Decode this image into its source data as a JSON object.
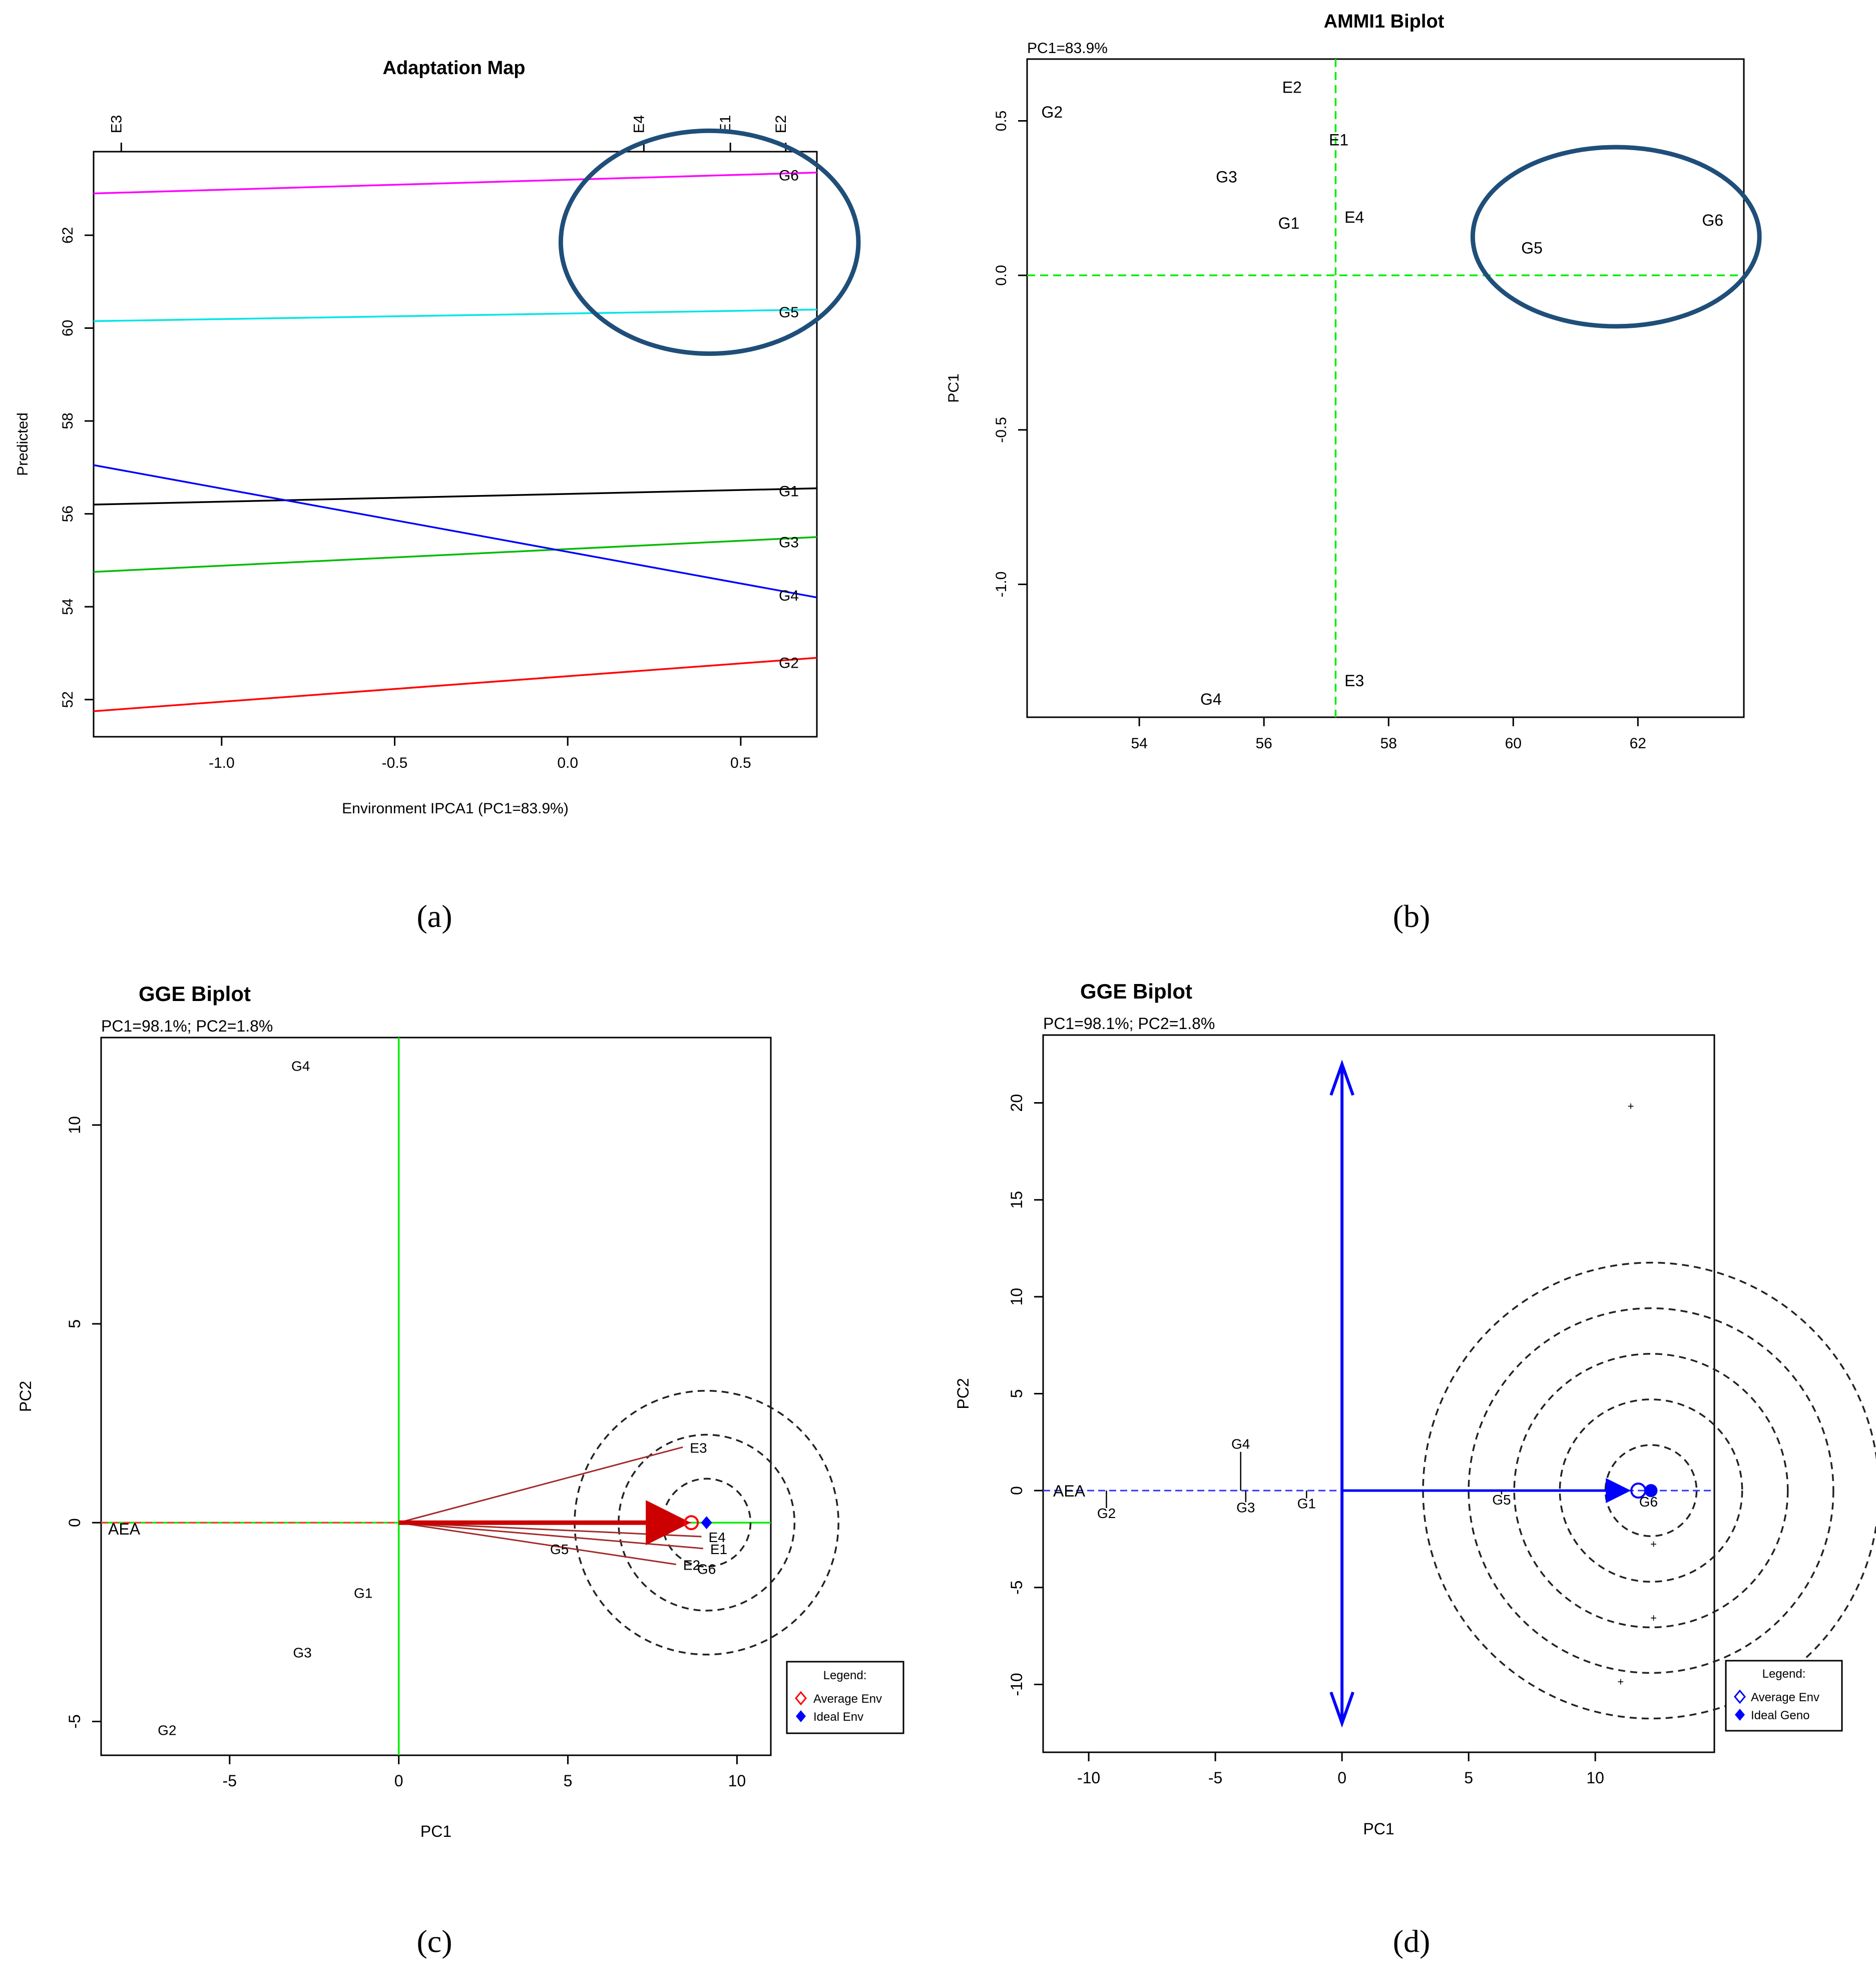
{
  "captions": {
    "a": "(a)",
    "b": "(b)",
    "c": "(c)",
    "d": "(d)"
  },
  "colors": {
    "genotype": "#0000ff",
    "environment": "#ff0000",
    "circle": "#1f4e79",
    "green": "#00ee00",
    "dash": "#000000"
  },
  "chart_data": [
    {
      "id": "a",
      "type": "line",
      "title": "Adaptation Map",
      "xlabel": "Environment IPCA1 (PC1=83.9%)",
      "ylabel": "Predicted",
      "xlim": [
        -1.37,
        0.72
      ],
      "ylim": [
        51.2,
        63.8
      ],
      "x_ticks": [
        -1.0,
        -0.5,
        0.0,
        0.5
      ],
      "x_tick_labels": [
        "-1.0",
        "-0.5",
        "0.0",
        "0.5"
      ],
      "y_ticks": [
        52,
        54,
        56,
        58,
        60,
        62
      ],
      "y_tick_labels": [
        "52",
        "54",
        "56",
        "58",
        "60",
        "62"
      ],
      "top_axis": [
        {
          "label": "E3",
          "x": -1.29
        },
        {
          "label": "E4",
          "x": 0.22
        },
        {
          "label": "E1",
          "x": 0.47
        },
        {
          "label": "E2",
          "x": 0.63
        }
      ],
      "series": [
        {
          "name": "G6",
          "color": "#ff00ff",
          "x": [
            -1.37,
            0.72
          ],
          "y": [
            62.9,
            63.35
          ],
          "label_at": [
            0.61,
            63.3
          ]
        },
        {
          "name": "G5",
          "color": "#00e5e5",
          "x": [
            -1.37,
            0.72
          ],
          "y": [
            60.15,
            60.4
          ],
          "label_at": [
            0.61,
            60.35
          ]
        },
        {
          "name": "G1",
          "color": "#000000",
          "x": [
            -1.37,
            0.72
          ],
          "y": [
            56.2,
            56.55
          ],
          "label_at": [
            0.61,
            56.5
          ]
        },
        {
          "name": "G3",
          "color": "#00bb00",
          "x": [
            -1.37,
            0.72
          ],
          "y": [
            54.75,
            55.5
          ],
          "label_at": [
            0.61,
            55.4
          ]
        },
        {
          "name": "G4",
          "color": "#0000ff",
          "x": [
            -1.37,
            0.72
          ],
          "y": [
            57.05,
            54.2
          ],
          "label_at": [
            0.61,
            54.25
          ]
        },
        {
          "name": "G2",
          "color": "#ff0000",
          "x": [
            -1.37,
            0.72
          ],
          "y": [
            51.75,
            52.9
          ],
          "label_at": [
            0.61,
            52.8
          ]
        }
      ],
      "annotations": [
        {
          "shape": "ellipse",
          "center": [
            0.41,
            61.85
          ],
          "radii": [
            0.43,
            2.4
          ]
        }
      ]
    },
    {
      "id": "b",
      "type": "scatter",
      "title": "AMMI1 Biplot",
      "subtitle": "PC1=83.9%",
      "xlabel": "",
      "ylabel": "PC1",
      "xlim": [
        52.2,
        63.7
      ],
      "ylim": [
        -1.43,
        0.7
      ],
      "x_ticks": [
        54,
        56,
        58,
        60,
        62
      ],
      "x_tick_labels": [
        "54",
        "56",
        "58",
        "60",
        "62"
      ],
      "y_ticks": [
        -1.0,
        -0.5,
        0.0,
        0.5
      ],
      "y_tick_labels": [
        "-1.0",
        "-0.5",
        "0.0",
        "0.5"
      ],
      "ref_lines": {
        "x": 57.15,
        "y": 0.0
      },
      "points": [
        {
          "label": "G2",
          "x": 52.6,
          "y": 0.53,
          "group": "genotype"
        },
        {
          "label": "G3",
          "x": 55.4,
          "y": 0.32,
          "group": "genotype"
        },
        {
          "label": "G1",
          "x": 56.4,
          "y": 0.17,
          "group": "genotype"
        },
        {
          "label": "G5",
          "x": 60.3,
          "y": 0.09,
          "group": "genotype"
        },
        {
          "label": "G6",
          "x": 63.2,
          "y": 0.18,
          "group": "genotype"
        },
        {
          "label": "G4",
          "x": 55.15,
          "y": -1.37,
          "group": "genotype"
        },
        {
          "label": "E2",
          "x": 56.45,
          "y": 0.61,
          "group": "environment"
        },
        {
          "label": "E1",
          "x": 57.2,
          "y": 0.44,
          "group": "environment"
        },
        {
          "label": "E4",
          "x": 57.45,
          "y": 0.19,
          "group": "environment"
        },
        {
          "label": "E3",
          "x": 57.45,
          "y": -1.31,
          "group": "environment"
        }
      ],
      "annotations": [
        {
          "shape": "ellipse",
          "center": [
            61.65,
            0.125
          ],
          "radii": [
            2.3,
            0.29
          ]
        }
      ]
    },
    {
      "id": "c",
      "type": "scatter",
      "title": "GGE Biplot",
      "subtitle": "PC1=98.1%; PC2=1.8%",
      "xlabel": "PC1",
      "ylabel": "PC2",
      "xlim": [
        -8.8,
        11.0
      ],
      "ylim": [
        -5.85,
        12.2
      ],
      "x_ticks": [
        -5,
        0,
        5,
        10
      ],
      "x_tick_labels": [
        "-5",
        "0",
        "5",
        "10"
      ],
      "y_ticks": [
        -5,
        0,
        5,
        10
      ],
      "y_tick_labels": [
        "-5",
        "0",
        "5",
        "10"
      ],
      "genotypes": [
        {
          "label": "G4",
          "x": -2.9,
          "y": 11.5
        },
        {
          "label": "G1",
          "x": -1.05,
          "y": -1.75
        },
        {
          "label": "G3",
          "x": -2.85,
          "y": -3.25
        },
        {
          "label": "G2",
          "x": -6.85,
          "y": -5.2
        },
        {
          "label": "G5",
          "x": 4.75,
          "y": -0.65
        },
        {
          "label": "G6",
          "x": 9.1,
          "y": -1.15
        }
      ],
      "environments": [
        {
          "label": "E3",
          "x": 8.4,
          "y": 1.9
        },
        {
          "label": "E4",
          "x": 8.95,
          "y": -0.35
        },
        {
          "label": "E1",
          "x": 9.0,
          "y": -0.65
        },
        {
          "label": "E2",
          "x": 8.2,
          "y": -1.05
        }
      ],
      "aea_label": "AEA",
      "average_point": [
        8.65,
        0.0
      ],
      "ideal_point": [
        9.1,
        0.0
      ],
      "circle_center": [
        9.1,
        0.0
      ],
      "circle_radii": [
        1.3,
        2.6,
        3.9
      ],
      "legend": {
        "title": "Legend:",
        "items": [
          "Average Env",
          "Ideal Env"
        ]
      }
    },
    {
      "id": "d",
      "type": "scatter",
      "title": "GGE Biplot",
      "subtitle": "PC1=98.1%; PC2=1.8%",
      "xlabel": "PC1",
      "ylabel": "PC2",
      "xlim": [
        -11.8,
        14.7
      ],
      "ylim": [
        -13.5,
        23.5
      ],
      "x_ticks": [
        -10,
        -5,
        0,
        5,
        10
      ],
      "x_tick_labels": [
        "-10",
        "-5",
        "0",
        "5",
        "10"
      ],
      "y_ticks": [
        -10,
        -5,
        0,
        5,
        10,
        15,
        20
      ],
      "y_tick_labels": [
        "-10",
        "-5",
        "0",
        "5",
        "10",
        "15",
        "20"
      ],
      "genotypes": [
        {
          "label": "G4",
          "x": -4.0,
          "y": 2.0
        },
        {
          "label": "G2",
          "x": -9.3,
          "y": -0.9
        },
        {
          "label": "G3",
          "x": -3.8,
          "y": -0.6
        },
        {
          "label": "G1",
          "x": -1.4,
          "y": -0.4
        },
        {
          "label": "G5",
          "x": 6.3,
          "y": -0.2
        },
        {
          "label": "G6",
          "x": 12.1,
          "y": -0.3
        }
      ],
      "environment_points": [
        {
          "x": 11.4,
          "y": 19.8
        },
        {
          "x": 12.3,
          "y": -2.8
        },
        {
          "x": 12.3,
          "y": -6.6
        },
        {
          "x": 11.0,
          "y": -9.9
        }
      ],
      "aea_label": "AEA",
      "average_point": [
        11.7,
        0.0
      ],
      "ideal_point": [
        12.2,
        0.0
      ],
      "circle_center": [
        12.2,
        0.0
      ],
      "circle_radii": [
        1.8,
        3.6,
        5.4,
        7.2,
        9.0
      ],
      "legend": {
        "title": "Legend:",
        "items": [
          "Average Env",
          "Ideal Geno"
        ]
      }
    }
  ]
}
